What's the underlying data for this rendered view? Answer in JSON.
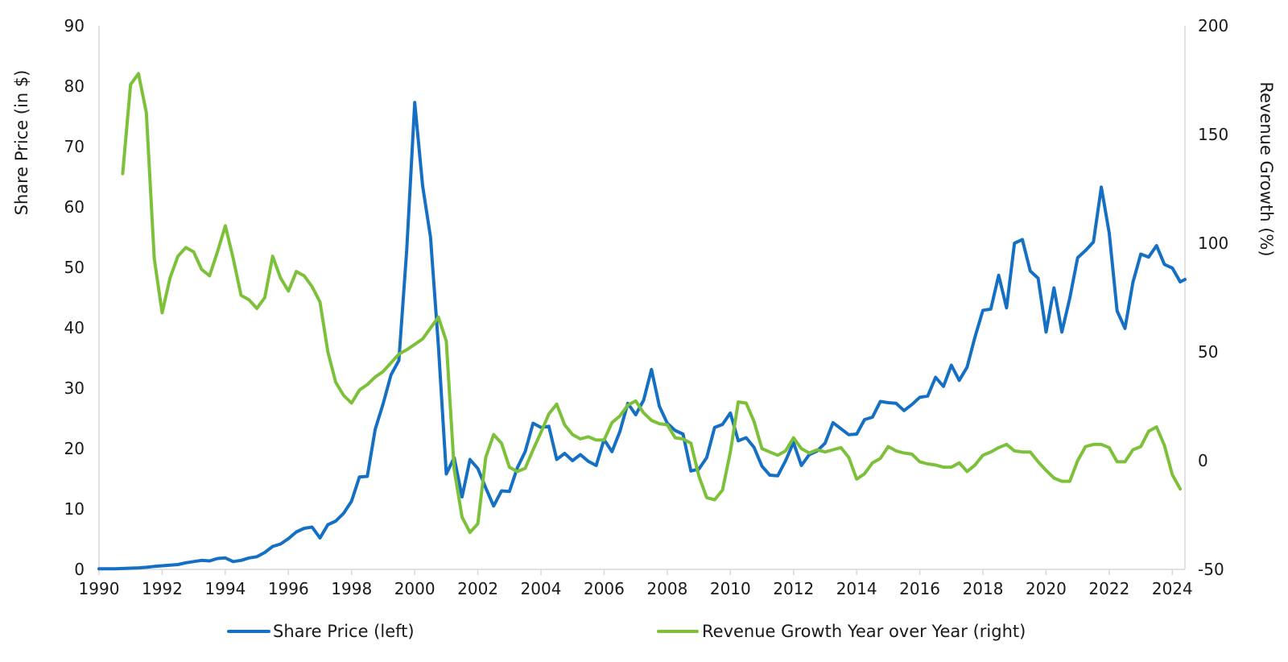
{
  "chart_data": {
    "type": "line",
    "xlabel": "",
    "ylabel": "Share Price (in $)",
    "y2label": "Revenue Growth (%)",
    "xlim": [
      1990,
      2024.4
    ],
    "ylim": [
      0,
      90
    ],
    "y2lim": [
      -50,
      200
    ],
    "x_ticks": [
      "1990",
      "1992",
      "1994",
      "1996",
      "1998",
      "2000",
      "2002",
      "2004",
      "2006",
      "2008",
      "2010",
      "2012",
      "2014",
      "2016",
      "2018",
      "2020",
      "2022",
      "2024"
    ],
    "y_ticks": [
      "0",
      "10",
      "20",
      "30",
      "40",
      "50",
      "60",
      "70",
      "80",
      "90"
    ],
    "y2_ticks": [
      "-50",
      "0",
      "50",
      "100",
      "150",
      "200"
    ],
    "legend_position": "bottom",
    "colors": {
      "share_price": "#1570C4",
      "revenue_growth": "#7DC13A",
      "axis": "#d9d9d9"
    },
    "series": [
      {
        "name": "Share Price (left)",
        "axis": "left",
        "color": "#1570C4",
        "points": [
          [
            1990.0,
            0.1
          ],
          [
            1990.25,
            0.1
          ],
          [
            1990.5,
            0.1
          ],
          [
            1990.75,
            0.15
          ],
          [
            1991.0,
            0.2
          ],
          [
            1991.25,
            0.25
          ],
          [
            1991.5,
            0.35
          ],
          [
            1991.75,
            0.5
          ],
          [
            1992.0,
            0.6
          ],
          [
            1992.25,
            0.7
          ],
          [
            1992.5,
            0.8
          ],
          [
            1992.75,
            1.1
          ],
          [
            1993.0,
            1.3
          ],
          [
            1993.25,
            1.5
          ],
          [
            1993.5,
            1.4
          ],
          [
            1993.75,
            1.8
          ],
          [
            1994.0,
            1.9
          ],
          [
            1994.25,
            1.3
          ],
          [
            1994.5,
            1.5
          ],
          [
            1994.75,
            1.9
          ],
          [
            1995.0,
            2.1
          ],
          [
            1995.25,
            2.8
          ],
          [
            1995.5,
            3.8
          ],
          [
            1995.75,
            4.2
          ],
          [
            1996.0,
            5.1
          ],
          [
            1996.25,
            6.2
          ],
          [
            1996.5,
            6.8
          ],
          [
            1996.75,
            7.0
          ],
          [
            1997.0,
            5.2
          ],
          [
            1997.25,
            7.4
          ],
          [
            1997.5,
            8.0
          ],
          [
            1997.75,
            9.3
          ],
          [
            1998.0,
            11.3
          ],
          [
            1998.25,
            15.3
          ],
          [
            1998.5,
            15.4
          ],
          [
            1998.75,
            23.2
          ],
          [
            1999.0,
            27.4
          ],
          [
            1999.25,
            32.2
          ],
          [
            1999.5,
            34.6
          ],
          [
            1999.75,
            53.0
          ],
          [
            2000.0,
            77.3
          ],
          [
            2000.25,
            63.5
          ],
          [
            2000.5,
            55.0
          ],
          [
            2000.75,
            37.0
          ],
          [
            2001.0,
            15.8
          ],
          [
            2001.25,
            18.5
          ],
          [
            2001.5,
            12.0
          ],
          [
            2001.75,
            18.2
          ],
          [
            2002.0,
            16.7
          ],
          [
            2002.25,
            13.5
          ],
          [
            2002.5,
            10.5
          ],
          [
            2002.75,
            13.0
          ],
          [
            2003.0,
            12.9
          ],
          [
            2003.25,
            16.8
          ],
          [
            2003.5,
            19.5
          ],
          [
            2003.75,
            24.2
          ],
          [
            2004.0,
            23.5
          ],
          [
            2004.25,
            23.7
          ],
          [
            2004.5,
            18.2
          ],
          [
            2004.75,
            19.2
          ],
          [
            2005.0,
            18.0
          ],
          [
            2005.25,
            19.0
          ],
          [
            2005.5,
            17.9
          ],
          [
            2005.75,
            17.2
          ],
          [
            2006.0,
            21.5
          ],
          [
            2006.25,
            19.5
          ],
          [
            2006.5,
            22.8
          ],
          [
            2006.75,
            27.5
          ],
          [
            2007.0,
            25.6
          ],
          [
            2007.25,
            28.0
          ],
          [
            2007.5,
            33.1
          ],
          [
            2007.75,
            27.0
          ],
          [
            2008.0,
            24.2
          ],
          [
            2008.25,
            23.0
          ],
          [
            2008.5,
            22.4
          ],
          [
            2008.75,
            16.3
          ],
          [
            2009.0,
            16.6
          ],
          [
            2009.25,
            18.5
          ],
          [
            2009.5,
            23.5
          ],
          [
            2009.75,
            24.0
          ],
          [
            2010.0,
            25.9
          ],
          [
            2010.25,
            21.3
          ],
          [
            2010.5,
            21.8
          ],
          [
            2010.75,
            20.2
          ],
          [
            2011.0,
            17.1
          ],
          [
            2011.25,
            15.6
          ],
          [
            2011.5,
            15.5
          ],
          [
            2011.75,
            18.0
          ],
          [
            2012.0,
            21.0
          ],
          [
            2012.25,
            17.2
          ],
          [
            2012.5,
            19.0
          ],
          [
            2012.75,
            19.6
          ],
          [
            2013.0,
            20.9
          ],
          [
            2013.25,
            24.3
          ],
          [
            2013.5,
            23.3
          ],
          [
            2013.75,
            22.3
          ],
          [
            2014.0,
            22.4
          ],
          [
            2014.25,
            24.8
          ],
          [
            2014.5,
            25.2
          ],
          [
            2014.75,
            27.8
          ],
          [
            2015.0,
            27.6
          ],
          [
            2015.25,
            27.5
          ],
          [
            2015.5,
            26.3
          ],
          [
            2015.75,
            27.3
          ],
          [
            2016.0,
            28.5
          ],
          [
            2016.25,
            28.7
          ],
          [
            2016.5,
            31.8
          ],
          [
            2016.75,
            30.3
          ],
          [
            2017.0,
            33.8
          ],
          [
            2017.25,
            31.3
          ],
          [
            2017.5,
            33.5
          ],
          [
            2017.75,
            38.5
          ],
          [
            2018.0,
            42.9
          ],
          [
            2018.25,
            43.1
          ],
          [
            2018.5,
            48.7
          ],
          [
            2018.75,
            43.3
          ],
          [
            2019.0,
            54.0
          ],
          [
            2019.25,
            54.6
          ],
          [
            2019.5,
            49.4
          ],
          [
            2019.75,
            48.2
          ],
          [
            2020.0,
            39.3
          ],
          [
            2020.25,
            46.6
          ],
          [
            2020.5,
            39.3
          ],
          [
            2020.75,
            44.9
          ],
          [
            2021.0,
            51.6
          ],
          [
            2021.25,
            52.8
          ],
          [
            2021.5,
            54.2
          ],
          [
            2021.75,
            63.3
          ],
          [
            2022.0,
            55.7
          ],
          [
            2022.25,
            42.8
          ],
          [
            2022.5,
            39.9
          ],
          [
            2022.75,
            47.5
          ],
          [
            2023.0,
            52.2
          ],
          [
            2023.25,
            51.7
          ],
          [
            2023.5,
            53.6
          ],
          [
            2023.75,
            50.5
          ],
          [
            2024.0,
            49.9
          ],
          [
            2024.25,
            47.6
          ],
          [
            2024.4,
            48.0
          ]
        ]
      },
      {
        "name": "Revenue Growth Year over Year (right)",
        "axis": "right",
        "color": "#7DC13A",
        "points": [
          [
            1990.75,
            132.0
          ],
          [
            1991.0,
            173.0
          ],
          [
            1991.25,
            178.0
          ],
          [
            1991.5,
            160.0
          ],
          [
            1991.75,
            93.0
          ],
          [
            1992.0,
            68.0
          ],
          [
            1992.25,
            84.0
          ],
          [
            1992.5,
            94.0
          ],
          [
            1992.75,
            98.0
          ],
          [
            1993.0,
            96.0
          ],
          [
            1993.25,
            88.0
          ],
          [
            1993.5,
            85.0
          ],
          [
            1993.75,
            96.0
          ],
          [
            1994.0,
            108.0
          ],
          [
            1994.25,
            93.0
          ],
          [
            1994.5,
            76.0
          ],
          [
            1994.75,
            74.0
          ],
          [
            1995.0,
            70.0
          ],
          [
            1995.25,
            75.0
          ],
          [
            1995.5,
            94.0
          ],
          [
            1995.75,
            84.0
          ],
          [
            1996.0,
            78.0
          ],
          [
            1996.25,
            87.0
          ],
          [
            1996.5,
            85.0
          ],
          [
            1996.75,
            80.0
          ],
          [
            1997.0,
            73.0
          ],
          [
            1997.25,
            50.0
          ],
          [
            1997.5,
            36.0
          ],
          [
            1997.75,
            30.0
          ],
          [
            1998.0,
            26.5
          ],
          [
            1998.25,
            32.5
          ],
          [
            1998.5,
            35.0
          ],
          [
            1998.75,
            38.5
          ],
          [
            1999.0,
            41.0
          ],
          [
            1999.25,
            45.0
          ],
          [
            1999.5,
            49.0
          ],
          [
            1999.75,
            51.0
          ],
          [
            2000.0,
            53.5
          ],
          [
            2000.25,
            56.0
          ],
          [
            2000.5,
            61.0
          ],
          [
            2000.75,
            66.0
          ],
          [
            2001.0,
            55.0
          ],
          [
            2001.25,
            -4.0
          ],
          [
            2001.5,
            -26.0
          ],
          [
            2001.75,
            -33.0
          ],
          [
            2002.0,
            -29.0
          ],
          [
            2002.25,
            1.5
          ],
          [
            2002.5,
            12.0
          ],
          [
            2002.75,
            8.0
          ],
          [
            2003.0,
            -3.0
          ],
          [
            2003.25,
            -5.0
          ],
          [
            2003.5,
            -3.5
          ],
          [
            2003.75,
            5.0
          ],
          [
            2004.0,
            13.0
          ],
          [
            2004.25,
            21.5
          ],
          [
            2004.5,
            26.0
          ],
          [
            2004.75,
            16.5
          ],
          [
            2005.0,
            12.0
          ],
          [
            2005.25,
            10.0
          ],
          [
            2005.5,
            11.0
          ],
          [
            2005.75,
            9.5
          ],
          [
            2006.0,
            9.5
          ],
          [
            2006.25,
            17.5
          ],
          [
            2006.5,
            20.5
          ],
          [
            2006.75,
            25.5
          ],
          [
            2007.0,
            27.5
          ],
          [
            2007.25,
            22.0
          ],
          [
            2007.5,
            18.5
          ],
          [
            2007.75,
            17.0
          ],
          [
            2008.0,
            16.5
          ],
          [
            2008.25,
            10.5
          ],
          [
            2008.5,
            10.0
          ],
          [
            2008.75,
            8.0
          ],
          [
            2009.0,
            -7.0
          ],
          [
            2009.25,
            -17.0
          ],
          [
            2009.5,
            -18.0
          ],
          [
            2009.75,
            -13.5
          ],
          [
            2010.0,
            4.0
          ],
          [
            2010.25,
            27.0
          ],
          [
            2010.5,
            26.5
          ],
          [
            2010.75,
            18.0
          ],
          [
            2011.0,
            5.5
          ],
          [
            2011.25,
            4.0
          ],
          [
            2011.5,
            2.5
          ],
          [
            2011.75,
            4.5
          ],
          [
            2012.0,
            10.5
          ],
          [
            2012.25,
            5.5
          ],
          [
            2012.5,
            3.5
          ],
          [
            2012.75,
            5.0
          ],
          [
            2013.0,
            4.0
          ],
          [
            2013.25,
            5.0
          ],
          [
            2013.5,
            6.0
          ],
          [
            2013.75,
            1.5
          ],
          [
            2014.0,
            -8.5
          ],
          [
            2014.25,
            -6.0
          ],
          [
            2014.5,
            -1.0
          ],
          [
            2014.75,
            1.0
          ],
          [
            2015.0,
            6.5
          ],
          [
            2015.25,
            4.5
          ],
          [
            2015.5,
            3.5
          ],
          [
            2015.75,
            3.0
          ],
          [
            2016.0,
            -0.5
          ],
          [
            2016.25,
            -1.5
          ],
          [
            2016.5,
            -2.0
          ],
          [
            2016.75,
            -3.0
          ],
          [
            2017.0,
            -3.0
          ],
          [
            2017.25,
            -1.0
          ],
          [
            2017.5,
            -5.0
          ],
          [
            2017.75,
            -2.0
          ],
          [
            2018.0,
            2.5
          ],
          [
            2018.25,
            4.0
          ],
          [
            2018.5,
            6.0
          ],
          [
            2018.75,
            7.5
          ],
          [
            2019.0,
            4.5
          ],
          [
            2019.25,
            4.0
          ],
          [
            2019.5,
            4.0
          ],
          [
            2019.75,
            -0.5
          ],
          [
            2020.0,
            -4.5
          ],
          [
            2020.25,
            -8.0
          ],
          [
            2020.5,
            -9.5
          ],
          [
            2020.75,
            -9.5
          ],
          [
            2021.0,
            0.0
          ],
          [
            2021.25,
            6.5
          ],
          [
            2021.5,
            7.5
          ],
          [
            2021.75,
            7.5
          ],
          [
            2022.0,
            6.0
          ],
          [
            2022.25,
            -0.5
          ],
          [
            2022.5,
            -0.5
          ],
          [
            2022.75,
            5.0
          ],
          [
            2023.0,
            6.5
          ],
          [
            2023.25,
            13.5
          ],
          [
            2023.5,
            15.5
          ],
          [
            2023.75,
            7.0
          ],
          [
            2024.0,
            -6.5
          ],
          [
            2024.25,
            -13.0
          ]
        ]
      }
    ]
  }
}
